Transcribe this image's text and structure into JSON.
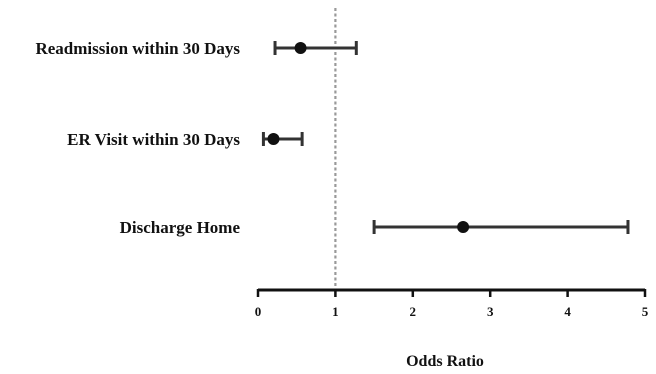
{
  "chart_data": {
    "type": "forest",
    "title": "",
    "xlabel": "Odds Ratio",
    "ylabel": "",
    "xlim": [
      0,
      5
    ],
    "xticks": [
      0,
      1,
      2,
      3,
      4,
      5
    ],
    "reference_line": 1,
    "grid": false,
    "series": [
      {
        "categories": [
          "Readmission within 30 Days",
          "ER Visit within 30 Days",
          "Discharge Home"
        ],
        "estimate": [
          0.55,
          0.2,
          2.65
        ],
        "ci_low": [
          0.22,
          0.07,
          1.5
        ],
        "ci_high": [
          1.27,
          0.57,
          4.78
        ]
      }
    ]
  }
}
